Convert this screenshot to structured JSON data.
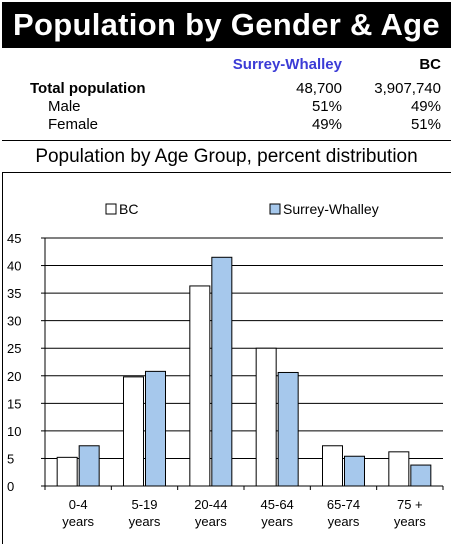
{
  "header": {
    "title": "Population by Gender & Age"
  },
  "stats": {
    "columns": {
      "area": "Surrey-Whalley",
      "province": "BC"
    },
    "rows": [
      {
        "label": "Total population",
        "area": "48,700",
        "province": "3,907,740",
        "bold": true
      },
      {
        "label": "Male",
        "area": "51%",
        "province": "49%",
        "bold": false
      },
      {
        "label": "Female",
        "area": "49%",
        "province": "51%",
        "bold": false
      }
    ]
  },
  "chart_data": {
    "type": "bar",
    "title": "Population by Age Group, percent distribution",
    "categories": [
      "0-4 years",
      "5-19 years",
      "20-44 years",
      "45-64 years",
      "65-74 years",
      "75 + years"
    ],
    "series": [
      {
        "name": "BC",
        "values": [
          5.2,
          19.8,
          36.3,
          25.0,
          7.3,
          6.2
        ],
        "color": "#ffffff"
      },
      {
        "name": "Surrey-Whalley",
        "values": [
          7.3,
          20.8,
          41.5,
          20.6,
          5.4,
          3.8
        ],
        "color": "#a6c8ec"
      }
    ],
    "ylim": [
      0,
      45
    ],
    "yticks": [
      0,
      5,
      10,
      15,
      20,
      25,
      30,
      35,
      40,
      45
    ],
    "grid": true,
    "legend_position": "top"
  }
}
